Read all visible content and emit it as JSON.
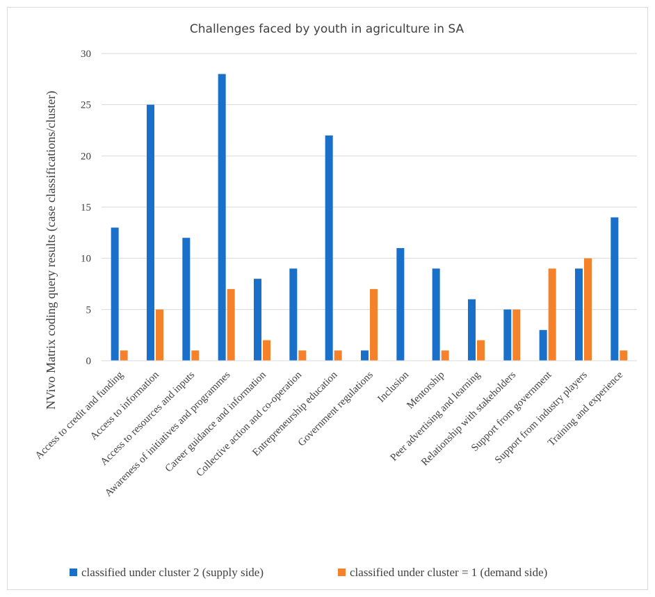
{
  "chart_data": {
    "type": "bar",
    "title": "Challenges faced by youth in agriculture in SA",
    "ylabel": "NVivo Matrix coding query results (case classifications/cluster)",
    "xlabel": "",
    "ylim": [
      0,
      30
    ],
    "yticks": [
      0,
      5,
      10,
      15,
      20,
      25,
      30
    ],
    "grid": true,
    "legend_position": "bottom",
    "categories": [
      "Access to credit and funding",
      "Access to information",
      "Access to resources and inputs",
      "Awareness of initiatives and programmes",
      "Career guidance and information",
      "Collective action and co-operation",
      "Entrepreneurship education",
      "Government regulations",
      "Inclusion",
      "Mentorship",
      "Peer advertising and learning",
      "Relationship with stakeholders",
      "Support from government",
      "Support from industry players",
      "Training and experience"
    ],
    "series": [
      {
        "name": "classified under cluster 2 (supply side)",
        "color": "#1a6fc9",
        "values": [
          13,
          25,
          12,
          28,
          8,
          9,
          22,
          1,
          11,
          9,
          6,
          5,
          3,
          9,
          14
        ]
      },
      {
        "name": "classified under cluster = 1 (demand side)",
        "color": "#f5822a",
        "values": [
          1,
          5,
          1,
          7,
          2,
          1,
          1,
          7,
          0,
          1,
          2,
          5,
          9,
          10,
          1
        ]
      }
    ]
  }
}
